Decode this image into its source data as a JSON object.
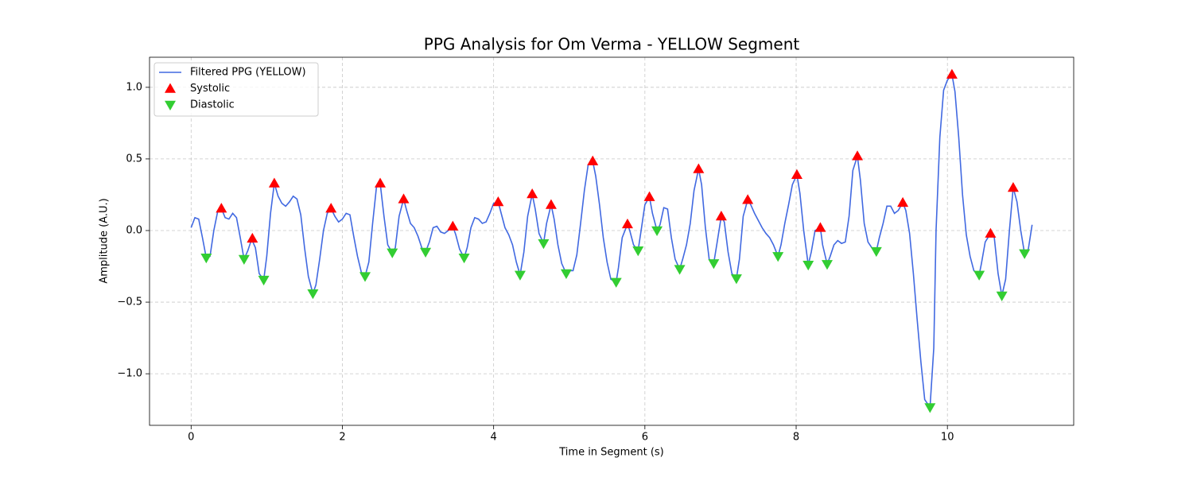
{
  "chart_data": {
    "type": "line",
    "title": "PPG Analysis for Om Verma - YELLOW Segment",
    "x_label": "Time in Segment (s)",
    "y_label": "Amplitude (A.U.)",
    "xlim": [
      -0.55,
      11.67
    ],
    "ylim": [
      -1.36,
      1.21
    ],
    "xticks": [
      0,
      2,
      4,
      6,
      8,
      10
    ],
    "yticks": [
      {
        "value": -1,
        "label": "−1.0"
      },
      {
        "value": -0.5,
        "label": "−0.5"
      },
      {
        "value": 0,
        "label": "0.0"
      },
      0.5,
      {
        "value": 1,
        "label": "1.0"
      }
    ],
    "grid": true,
    "legend": "upper left",
    "series": [
      {
        "name": "Filtered PPG (YELLOW)",
        "type": "line",
        "color": "#4169e1",
        "x": [
          0.0,
          0.05,
          0.1,
          0.15,
          0.2,
          0.25,
          0.3,
          0.35,
          0.4,
          0.45,
          0.5,
          0.55,
          0.6,
          0.65,
          0.7,
          0.75,
          0.8,
          0.85,
          0.9,
          0.96,
          1.0,
          1.05,
          1.1,
          1.15,
          1.2,
          1.25,
          1.3,
          1.35,
          1.4,
          1.45,
          1.5,
          1.55,
          1.61,
          1.65,
          1.7,
          1.75,
          1.8,
          1.85,
          1.9,
          1.95,
          2.0,
          2.05,
          2.1,
          2.15,
          2.2,
          2.25,
          2.3,
          2.35,
          2.4,
          2.45,
          2.5,
          2.55,
          2.6,
          2.66,
          2.7,
          2.75,
          2.81,
          2.85,
          2.9,
          2.95,
          3.0,
          3.05,
          3.1,
          3.15,
          3.2,
          3.25,
          3.3,
          3.35,
          3.4,
          3.46,
          3.5,
          3.55,
          3.61,
          3.65,
          3.7,
          3.75,
          3.8,
          3.85,
          3.9,
          3.95,
          4.0,
          4.06,
          4.1,
          4.15,
          4.2,
          4.25,
          4.3,
          4.35,
          4.4,
          4.45,
          4.51,
          4.55,
          4.6,
          4.66,
          4.7,
          4.76,
          4.8,
          4.85,
          4.9,
          4.96,
          5.0,
          5.05,
          5.1,
          5.15,
          5.2,
          5.25,
          5.31,
          5.35,
          5.4,
          5.45,
          5.5,
          5.55,
          5.62,
          5.65,
          5.7,
          5.77,
          5.8,
          5.85,
          5.91,
          5.95,
          6.0,
          6.06,
          6.1,
          6.16,
          6.2,
          6.25,
          6.3,
          6.35,
          6.4,
          6.46,
          6.5,
          6.55,
          6.6,
          6.65,
          6.71,
          6.75,
          6.8,
          6.85,
          6.91,
          6.95,
          7.01,
          7.05,
          7.1,
          7.15,
          7.21,
          7.25,
          7.3,
          7.36,
          7.4,
          7.45,
          7.5,
          7.55,
          7.6,
          7.65,
          7.7,
          7.76,
          7.8,
          7.85,
          7.9,
          7.95,
          8.01,
          8.05,
          8.1,
          8.16,
          8.2,
          8.25,
          8.32,
          8.35,
          8.41,
          8.45,
          8.5,
          8.55,
          8.6,
          8.65,
          8.7,
          8.75,
          8.81,
          8.85,
          8.9,
          8.95,
          9.0,
          9.06,
          9.1,
          9.15,
          9.2,
          9.25,
          9.3,
          9.35,
          9.41,
          9.45,
          9.5,
          9.55,
          9.6,
          9.65,
          9.7,
          9.77,
          9.82,
          9.85,
          9.9,
          9.95,
          10.0,
          10.06,
          10.1,
          10.15,
          10.2,
          10.25,
          10.3,
          10.35,
          10.42,
          10.45,
          10.5,
          10.57,
          10.62,
          10.67,
          10.72,
          10.77,
          10.82,
          10.87,
          10.92,
          10.97,
          11.02,
          11.07,
          11.12
        ],
        "values": [
          0.02,
          0.09,
          0.08,
          -0.05,
          -0.19,
          -0.18,
          0.0,
          0.13,
          0.155,
          0.09,
          0.08,
          0.12,
          0.09,
          -0.05,
          -0.2,
          -0.14,
          -0.06,
          -0.12,
          -0.3,
          -0.345,
          -0.18,
          0.12,
          0.33,
          0.24,
          0.19,
          0.17,
          0.2,
          0.24,
          0.22,
          0.11,
          -0.12,
          -0.32,
          -0.44,
          -0.38,
          -0.2,
          0.0,
          0.12,
          0.155,
          0.1,
          0.06,
          0.08,
          0.12,
          0.11,
          -0.04,
          -0.18,
          -0.29,
          -0.32,
          -0.22,
          0.05,
          0.3,
          0.33,
          0.1,
          -0.1,
          -0.155,
          -0.12,
          0.1,
          0.22,
          0.14,
          0.05,
          0.02,
          -0.04,
          -0.12,
          -0.15,
          -0.08,
          0.02,
          0.03,
          -0.01,
          -0.02,
          0.0,
          0.03,
          -0.03,
          -0.13,
          -0.19,
          -0.12,
          0.02,
          0.09,
          0.08,
          0.05,
          0.06,
          0.12,
          0.19,
          0.2,
          0.12,
          0.02,
          -0.03,
          -0.1,
          -0.22,
          -0.31,
          -0.15,
          0.1,
          0.255,
          0.15,
          -0.02,
          -0.09,
          0.05,
          0.18,
          0.08,
          -0.1,
          -0.23,
          -0.3,
          -0.28,
          -0.28,
          -0.17,
          0.05,
          0.28,
          0.46,
          0.485,
          0.38,
          0.18,
          -0.05,
          -0.22,
          -0.34,
          -0.36,
          -0.26,
          -0.05,
          0.045,
          0.0,
          -0.1,
          -0.14,
          0.0,
          0.18,
          0.235,
          0.12,
          0.0,
          0.04,
          0.16,
          0.15,
          -0.05,
          -0.2,
          -0.27,
          -0.2,
          -0.1,
          0.05,
          0.28,
          0.43,
          0.32,
          0.02,
          -0.2,
          -0.23,
          -0.1,
          0.1,
          0.06,
          -0.15,
          -0.3,
          -0.335,
          -0.2,
          0.1,
          0.215,
          0.18,
          0.12,
          0.07,
          0.02,
          -0.02,
          -0.05,
          -0.1,
          -0.18,
          -0.1,
          0.05,
          0.18,
          0.32,
          0.39,
          0.26,
          0.0,
          -0.24,
          -0.15,
          0.0,
          0.02,
          -0.1,
          -0.235,
          -0.18,
          -0.1,
          -0.07,
          -0.09,
          -0.08,
          0.1,
          0.42,
          0.52,
          0.35,
          0.05,
          -0.08,
          -0.12,
          -0.145,
          -0.05,
          0.05,
          0.17,
          0.17,
          0.12,
          0.14,
          0.195,
          0.14,
          -0.02,
          -0.3,
          -0.62,
          -0.92,
          -1.18,
          -1.235,
          -0.82,
          0.0,
          0.65,
          0.98,
          1.05,
          1.09,
          0.97,
          0.65,
          0.25,
          -0.03,
          -0.18,
          -0.28,
          -0.31,
          -0.23,
          -0.08,
          -0.02,
          -0.05,
          -0.3,
          -0.455,
          -0.34,
          0.0,
          0.3,
          0.2,
          0.0,
          -0.16,
          -0.13,
          0.04
        ]
      },
      {
        "name": "Systolic",
        "type": "scatter",
        "marker": "triangle-up",
        "color": "#ff0000",
        "x": [
          0.4,
          0.81,
          1.1,
          1.85,
          2.5,
          2.81,
          3.46,
          4.06,
          4.51,
          4.76,
          5.31,
          5.77,
          6.06,
          6.71,
          7.01,
          7.36,
          8.01,
          8.32,
          8.81,
          9.41,
          10.06,
          10.57,
          10.87
        ],
        "values": [
          0.155,
          -0.055,
          0.33,
          0.155,
          0.33,
          0.22,
          0.03,
          0.2,
          0.255,
          0.18,
          0.485,
          0.045,
          0.235,
          0.43,
          0.1,
          0.215,
          0.39,
          0.02,
          0.52,
          0.195,
          1.09,
          -0.02,
          0.3
        ]
      },
      {
        "name": "Diastolic",
        "type": "scatter",
        "marker": "triangle-down",
        "color": "#32cd32",
        "x": [
          0.2,
          0.7,
          0.96,
          1.61,
          2.3,
          2.66,
          3.1,
          3.61,
          4.35,
          4.66,
          4.96,
          5.62,
          5.91,
          6.16,
          6.46,
          6.91,
          7.21,
          7.76,
          8.16,
          8.41,
          9.06,
          9.77,
          10.42,
          10.72,
          11.02
        ],
        "values": [
          -0.19,
          -0.2,
          -0.345,
          -0.44,
          -0.32,
          -0.155,
          -0.15,
          -0.19,
          -0.31,
          -0.09,
          -0.3,
          -0.36,
          -0.14,
          0.0,
          -0.27,
          -0.23,
          -0.335,
          -0.18,
          -0.24,
          -0.235,
          -0.145,
          -1.235,
          -0.31,
          -0.455,
          -0.16
        ]
      }
    ]
  }
}
